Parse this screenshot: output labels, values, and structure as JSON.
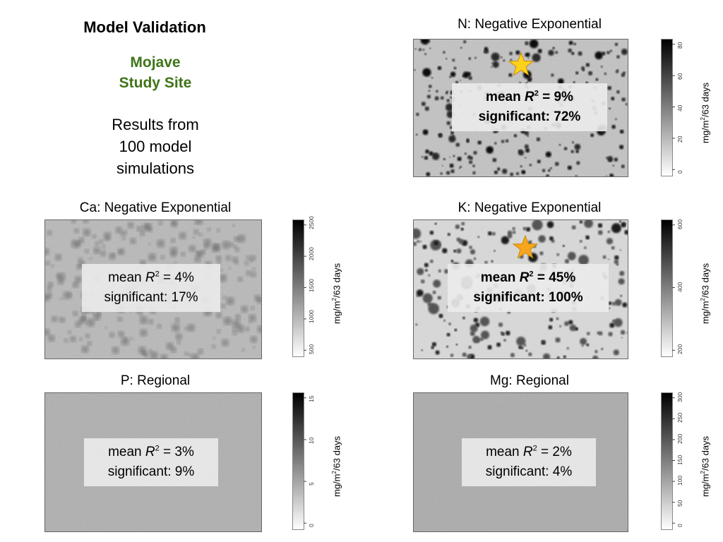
{
  "header": {
    "title": "Model Validation",
    "site_line1": "Mojave",
    "site_line2": "Study Site",
    "results_line1": "Results from",
    "results_line2": "100 model",
    "results_line3": "simulations"
  },
  "unit_label_main": "mg/m",
  "unit_label_sup": "2",
  "unit_label_suffix": "/63 days",
  "accent_color": "#3f7418",
  "star_color": "#ffd21a",
  "panels": [
    {
      "id": "N",
      "title": "N: Negative Exponential",
      "mean_prefix": "mean ",
      "r": "R",
      "r_sup": "2",
      "mean_suffix": " = 9%",
      "significant": "significant: 72%",
      "bold": true,
      "has_star": true,
      "colorbar_ticks": [
        "0",
        "20",
        "40",
        "60",
        "80"
      ],
      "pattern": "dark-dots"
    },
    {
      "id": "Ca",
      "title": "Ca: Negative Exponential",
      "mean_prefix": "mean ",
      "r": "R",
      "r_sup": "2",
      "mean_suffix": " = 4%",
      "significant": "significant: 17%",
      "bold": false,
      "has_star": false,
      "colorbar_ticks": [
        "500",
        "1000",
        "1500",
        "2000",
        "2500"
      ],
      "pattern": "fuzzy-blobs"
    },
    {
      "id": "K",
      "title": "K: Negative Exponential",
      "mean_prefix": "mean ",
      "r": "R",
      "r_sup": "2",
      "mean_suffix": " = 45%",
      "significant": "significant: 100%",
      "bold": true,
      "has_star": true,
      "colorbar_ticks": [
        "200",
        "400",
        "600"
      ],
      "pattern": "light-dots"
    },
    {
      "id": "P",
      "title": "P: Regional",
      "mean_prefix": "mean ",
      "r": "R",
      "r_sup": "2",
      "mean_suffix": " = 3%",
      "significant": "significant: 9%",
      "bold": false,
      "has_star": false,
      "colorbar_ticks": [
        "0",
        "5",
        "10",
        "15"
      ],
      "pattern": "noise"
    },
    {
      "id": "Mg",
      "title": "Mg: Regional",
      "mean_prefix": "mean ",
      "r": "R",
      "r_sup": "2",
      "mean_suffix": " = 2%",
      "significant": "significant: 4%",
      "bold": false,
      "has_star": false,
      "colorbar_ticks": [
        "0",
        "50",
        "100",
        "150",
        "200",
        "250",
        "300"
      ],
      "pattern": "noise"
    }
  ]
}
